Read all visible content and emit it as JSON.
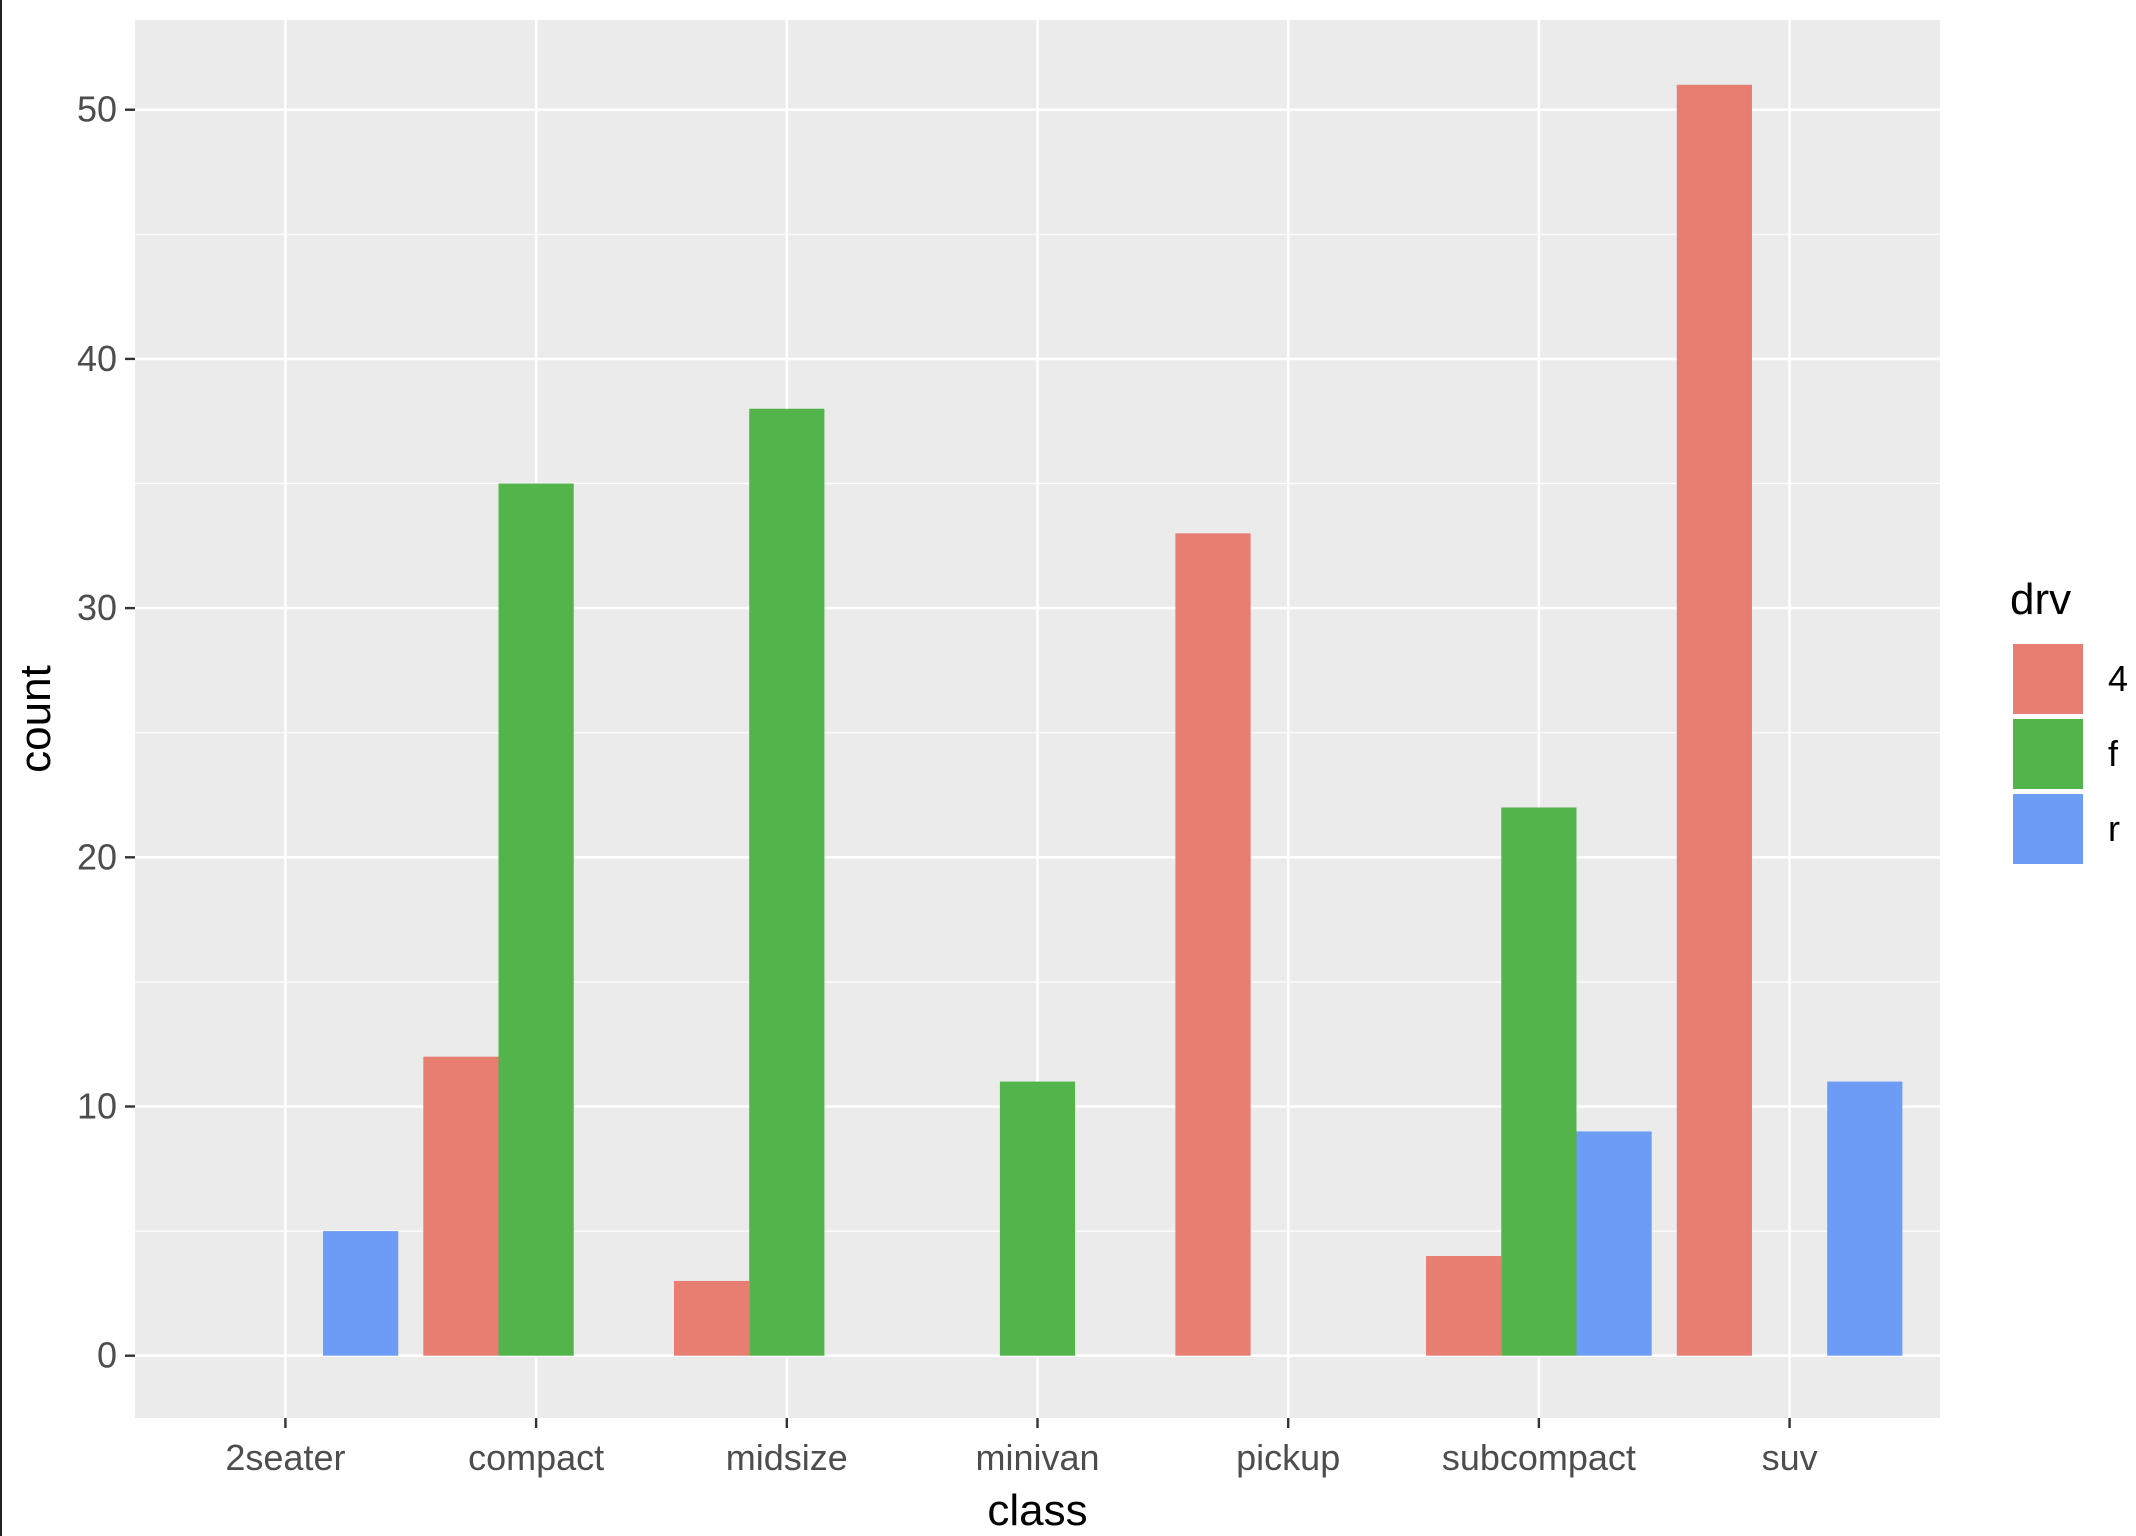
{
  "chart_data": {
    "type": "bar",
    "title": "",
    "xlabel": "class",
    "ylabel": "count",
    "categories": [
      "2seater",
      "compact",
      "midsize",
      "minivan",
      "pickup",
      "subcompact",
      "suv"
    ],
    "series": [
      {
        "name": "4",
        "color": "#E87D72",
        "values": [
          0,
          12,
          3,
          0,
          33,
          4,
          51
        ]
      },
      {
        "name": "f",
        "color": "#53B44B",
        "values": [
          0,
          35,
          38,
          11,
          0,
          22,
          0
        ]
      },
      {
        "name": "r",
        "color": "#6D9CF7",
        "values": [
          5,
          0,
          0,
          0,
          0,
          9,
          11
        ]
      }
    ],
    "ylim": [
      -2.5,
      53.6
    ],
    "yticks": [
      0,
      10,
      20,
      30,
      40,
      50
    ],
    "grid": true,
    "legend": {
      "title": "drv",
      "position": "right"
    },
    "colors": {
      "panel_background": "#EBEBEB",
      "gridline": "#FFFFFF"
    }
  }
}
